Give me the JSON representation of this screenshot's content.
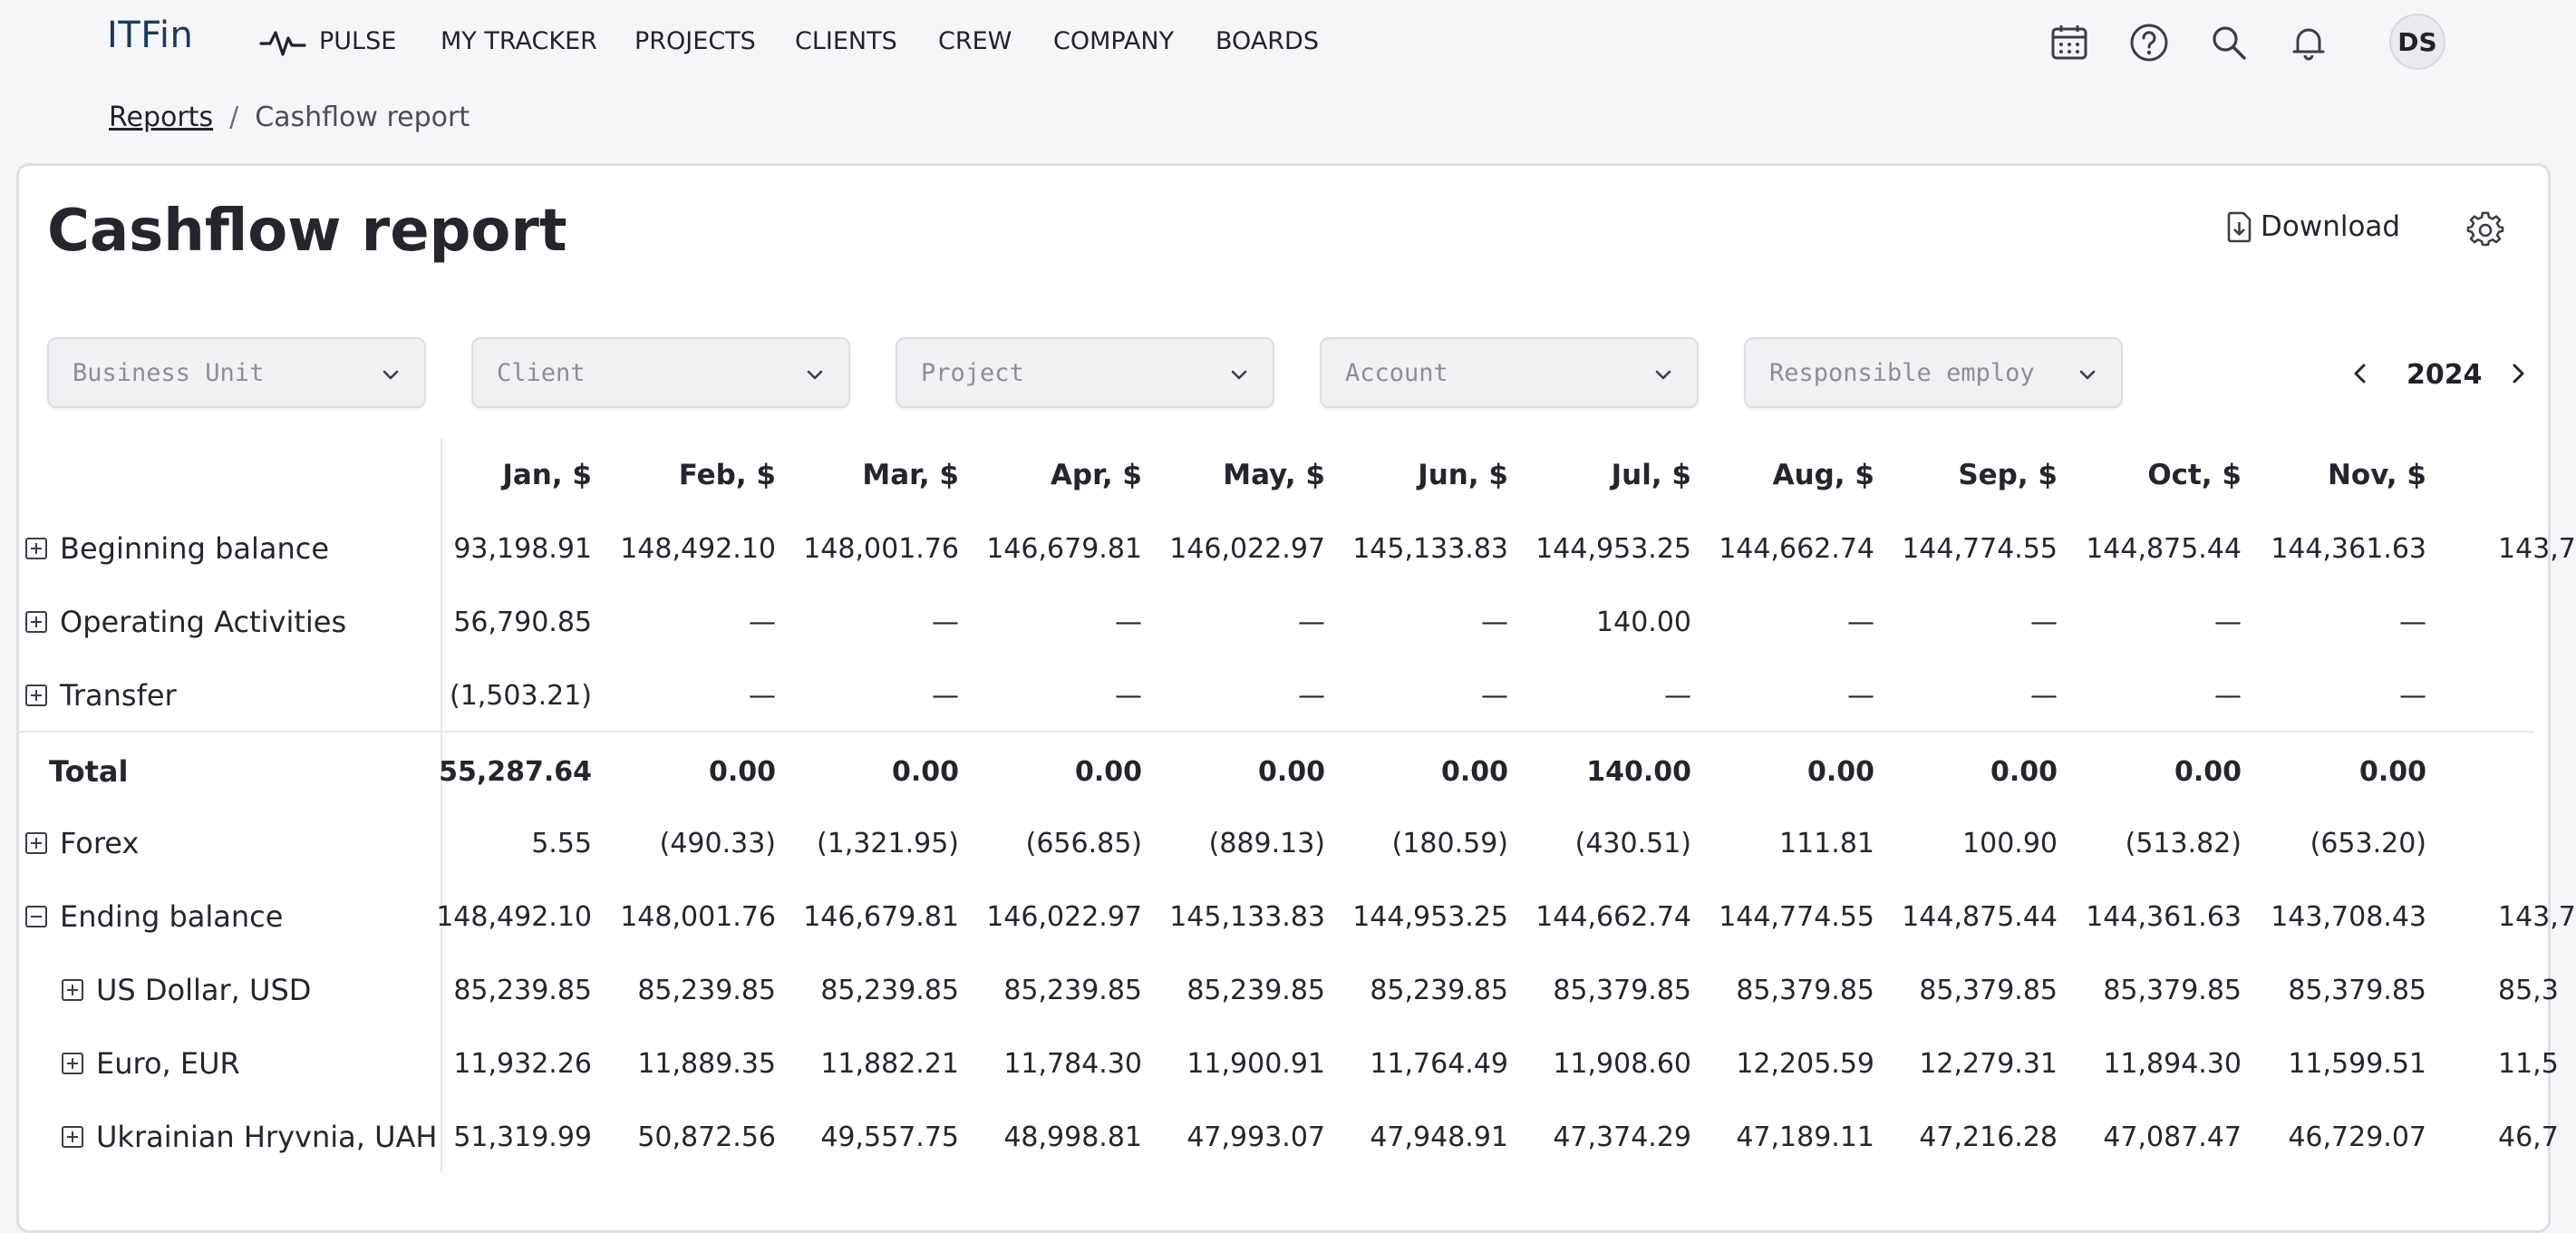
{
  "nav": {
    "logo": "ITFin",
    "items": [
      "PULSE",
      "MY TRACKER",
      "PROJECTS",
      "CLIENTS",
      "CREW",
      "COMPANY",
      "BOARDS"
    ],
    "icons": [
      "calendar-icon",
      "help-icon",
      "search-icon",
      "bell-icon"
    ],
    "avatar": "DS"
  },
  "breadcrumb": {
    "parent": "Reports",
    "current": "Cashflow report"
  },
  "page": {
    "title": "Cashflow report",
    "download_label": "Download"
  },
  "filters": [
    "Business Unit",
    "Client",
    "Project",
    "Account",
    "Responsible employ"
  ],
  "year": "2024",
  "table": {
    "columns": [
      "Jan, $",
      "Feb, $",
      "Mar, $",
      "Apr, $",
      "May, $",
      "Jun, $",
      "Jul, $",
      "Aug, $",
      "Sep, $",
      "Oct, $",
      "Nov, $"
    ],
    "rows": [
      {
        "label": "Beginning balance",
        "toggle": "plus",
        "indent": 0,
        "values": [
          "93,198.91",
          "148,492.10",
          "148,001.76",
          "146,679.81",
          "146,022.97",
          "145,133.83",
          "144,953.25",
          "144,662.74",
          "144,774.55",
          "144,875.44",
          "144,361.63"
        ],
        "partial": "143,7"
      },
      {
        "label": "Operating Activities",
        "toggle": "plus",
        "indent": 0,
        "values": [
          "56,790.85",
          "—",
          "—",
          "—",
          "—",
          "—",
          "140.00",
          "—",
          "—",
          "—",
          "—"
        ],
        "partial": ""
      },
      {
        "label": "Transfer",
        "toggle": "plus",
        "indent": 0,
        "values": [
          "(1,503.21)",
          "—",
          "—",
          "—",
          "—",
          "—",
          "—",
          "—",
          "—",
          "—",
          "—"
        ],
        "partial": ""
      },
      {
        "label": "Total",
        "toggle": "none",
        "indent": 0,
        "bold": true,
        "values": [
          "55,287.64",
          "0.00",
          "0.00",
          "0.00",
          "0.00",
          "0.00",
          "140.00",
          "0.00",
          "0.00",
          "0.00",
          "0.00"
        ],
        "partial": ""
      },
      {
        "label": "Forex",
        "toggle": "plus",
        "indent": 0,
        "values": [
          "5.55",
          "(490.33)",
          "(1,321.95)",
          "(656.85)",
          "(889.13)",
          "(180.59)",
          "(430.51)",
          "111.81",
          "100.90",
          "(513.82)",
          "(653.20)"
        ],
        "partial": ""
      },
      {
        "label": "Ending balance",
        "toggle": "minus",
        "indent": 0,
        "values": [
          "148,492.10",
          "148,001.76",
          "146,679.81",
          "146,022.97",
          "145,133.83",
          "144,953.25",
          "144,662.74",
          "144,774.55",
          "144,875.44",
          "144,361.63",
          "143,708.43"
        ],
        "partial": "143,7"
      },
      {
        "label": "US Dollar, USD",
        "toggle": "plus",
        "indent": 1,
        "values": [
          "85,239.85",
          "85,239.85",
          "85,239.85",
          "85,239.85",
          "85,239.85",
          "85,239.85",
          "85,379.85",
          "85,379.85",
          "85,379.85",
          "85,379.85",
          "85,379.85"
        ],
        "partial": "85,3"
      },
      {
        "label": "Euro, EUR",
        "toggle": "plus",
        "indent": 1,
        "values": [
          "11,932.26",
          "11,889.35",
          "11,882.21",
          "11,784.30",
          "11,900.91",
          "11,764.49",
          "11,908.60",
          "12,205.59",
          "12,279.31",
          "11,894.30",
          "11,599.51"
        ],
        "partial": "11,5"
      },
      {
        "label": "Ukrainian Hryvnia, UAH",
        "toggle": "plus",
        "indent": 1,
        "values": [
          "51,319.99",
          "50,872.56",
          "49,557.75",
          "48,998.81",
          "47,993.07",
          "47,948.91",
          "47,374.29",
          "47,189.11",
          "47,216.28",
          "47,087.47",
          "46,729.07"
        ],
        "partial": "46,7"
      }
    ]
  }
}
